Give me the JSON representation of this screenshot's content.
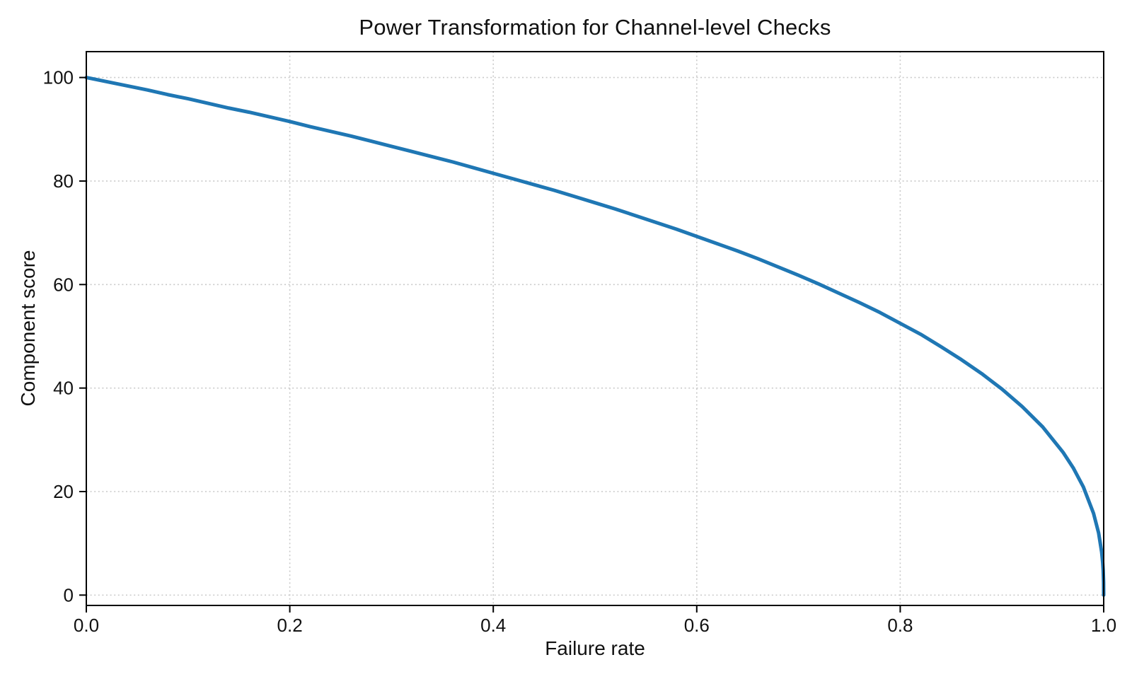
{
  "page": {
    "background": "#ffffff"
  },
  "chart_data": {
    "type": "line",
    "title": "Power Transformation for Channel-level Checks",
    "xlabel": "Failure rate",
    "ylabel": "Component score",
    "xlim": [
      0,
      1
    ],
    "ylim": [
      -2,
      105
    ],
    "x_ticks": [
      0.0,
      0.2,
      0.4,
      0.6,
      0.8,
      1.0
    ],
    "x_tick_labels": [
      "0.0",
      "0.2",
      "0.4",
      "0.6",
      "0.8",
      "1.0"
    ],
    "y_ticks": [
      0,
      20,
      40,
      60,
      80,
      100
    ],
    "y_tick_labels": [
      "0",
      "20",
      "40",
      "60",
      "80",
      "100"
    ],
    "grid": {
      "visible": true,
      "style": "dotted",
      "color": "#c9c9c9"
    },
    "axis_color": "#000000",
    "text_color": "#111111",
    "legend": null,
    "series": [
      {
        "name": "component-score-curve",
        "color": "#1f77b4",
        "line_width": 5,
        "x": [
          0.0,
          0.02,
          0.04,
          0.06,
          0.08,
          0.1,
          0.12,
          0.14,
          0.16,
          0.18,
          0.2,
          0.22,
          0.24,
          0.26,
          0.28,
          0.3,
          0.32,
          0.34,
          0.36,
          0.38,
          0.4,
          0.42,
          0.44,
          0.46,
          0.48,
          0.5,
          0.52,
          0.54,
          0.56,
          0.58,
          0.6,
          0.62,
          0.64,
          0.66,
          0.68,
          0.7,
          0.72,
          0.74,
          0.76,
          0.78,
          0.8,
          0.82,
          0.84,
          0.86,
          0.88,
          0.9,
          0.92,
          0.94,
          0.96,
          0.97,
          0.98,
          0.99,
          0.995,
          0.998,
          0.999,
          0.9995,
          0.9999,
          1.0
        ],
        "y": [
          100.0,
          99.2,
          98.4,
          97.6,
          96.7,
          95.9,
          95.0,
          94.1,
          93.3,
          92.4,
          91.5,
          90.5,
          89.6,
          88.7,
          87.7,
          86.7,
          85.7,
          84.7,
          83.7,
          82.6,
          81.5,
          80.4,
          79.3,
          78.2,
          77.0,
          75.8,
          74.6,
          73.3,
          72.0,
          70.7,
          69.3,
          67.9,
          66.5,
          65.0,
          63.4,
          61.8,
          60.1,
          58.3,
          56.5,
          54.6,
          52.5,
          50.4,
          48.0,
          45.5,
          42.8,
          39.8,
          36.4,
          32.5,
          27.6,
          24.6,
          20.9,
          15.8,
          12.0,
          8.3,
          6.3,
          4.8,
          2.5,
          0.0
        ]
      }
    ]
  }
}
